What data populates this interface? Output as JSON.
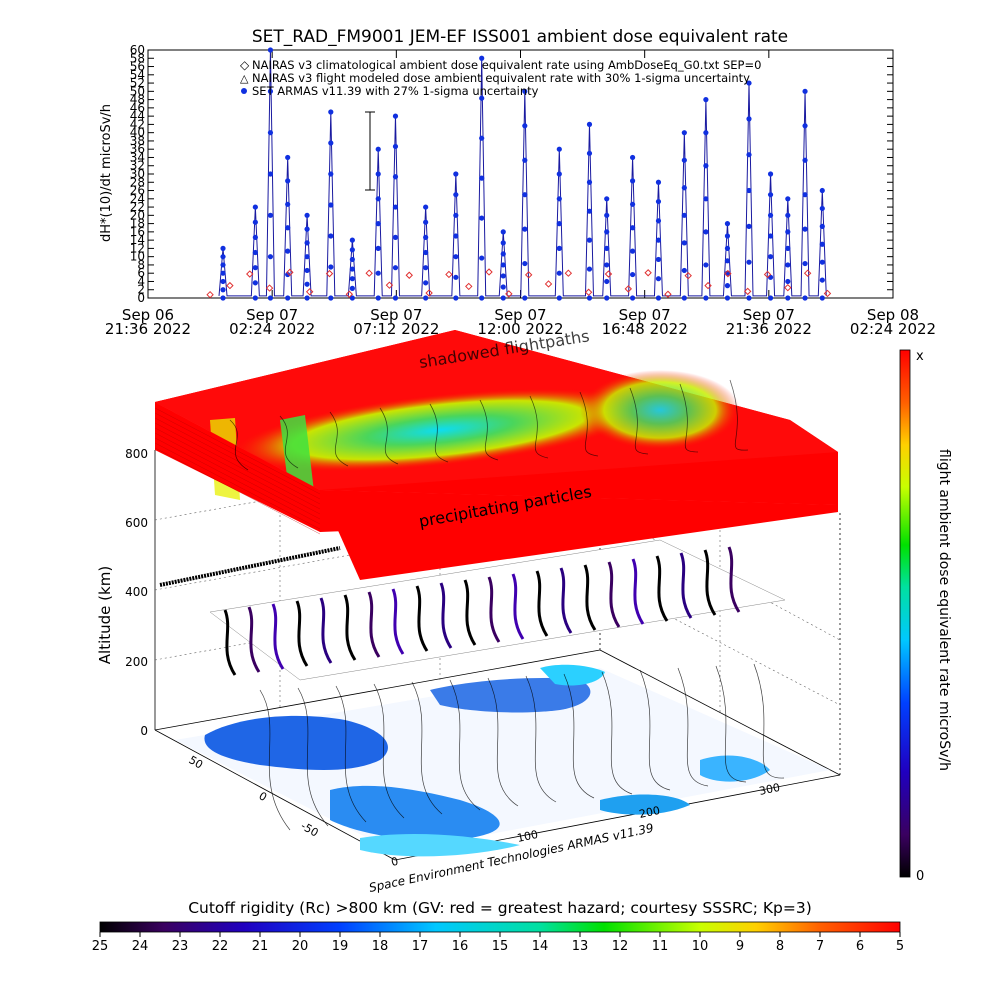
{
  "colors": {
    "nairas_clim": "#e03030",
    "armas": "#1030e0",
    "line": "#1a1aa0"
  },
  "top_chart": {
    "title": "SET_RAD_FM9001  JEM-EF ISS001 ambient dose equivalent rate",
    "ylabel": "dH*(10)/dt microSv/h",
    "legend": [
      "NAIRAS v3 climatological ambient dose equivalent rate using AmbDoseEq_G0.txt SEP=0",
      "NAIRAS v3 flight modeled dose ambient equivalent rate with 30% 1-sigma uncertainty",
      "SET ARMAS v11.39 with 27% 1-sigma uncertainty"
    ],
    "x_ticks": [
      {
        "line1": "Sep 06",
        "line2": "21:36 2022"
      },
      {
        "line1": "Sep 07",
        "line2": "02:24 2022"
      },
      {
        "line1": "Sep 07",
        "line2": "07:12 2022"
      },
      {
        "line1": "Sep 07",
        "line2": "12:00 2022"
      },
      {
        "line1": "Sep 07",
        "line2": "16:48 2022"
      },
      {
        "line1": "Sep 07",
        "line2": "21:36 2022"
      },
      {
        "line1": "Sep 08",
        "line2": "02:24 2022"
      }
    ]
  },
  "map3d": {
    "flightpath_label": "shadowed flightpaths",
    "precip_label": "precipitating particles",
    "zlabel": "Altitude (km)",
    "z_ticks": [
      "0",
      "200",
      "400",
      "600",
      "800"
    ],
    "lat_ticks": [
      "50",
      "0",
      "-50"
    ],
    "lon_ticks": [
      "0",
      "100",
      "200",
      "300"
    ],
    "credit": "Space Environment Technologies ARMAS v11.39"
  },
  "right_colorbar": {
    "label": "flight ambient dose equivalent rate microSv/h",
    "top_label": "x",
    "bottom_label": "0"
  },
  "bottom_colorbar": {
    "title": "Cutoff rigidity (Rc) >800 km (GV: red = greatest hazard; courtesy SSSRC; Kp=3)",
    "ticks": [
      "25",
      "24",
      "23",
      "22",
      "21",
      "20",
      "19",
      "18",
      "17",
      "16",
      "15",
      "14",
      "13",
      "12",
      "11",
      "10",
      "9",
      "8",
      "7",
      "6",
      "5"
    ]
  },
  "chart_data": {
    "type": "line",
    "title": "SET_RAD_FM9001  JEM-EF ISS001 ambient dose equivalent rate",
    "ylabel": "dH*(10)/dt microSv/h",
    "xlabel": "",
    "xlim": [
      "2022-09-06 21:36",
      "2022-09-08 02:24"
    ],
    "ylim": [
      0,
      60
    ],
    "y_ticks": [
      0,
      2,
      4,
      6,
      8,
      10,
      12,
      14,
      16,
      18,
      20,
      22,
      24,
      26,
      28,
      30,
      32,
      34,
      36,
      38,
      40,
      42,
      44,
      46,
      48,
      50,
      52,
      54,
      56,
      58,
      60
    ],
    "x_ticks": [
      "2022-09-06 21:36",
      "2022-09-07 02:24",
      "2022-09-07 07:12",
      "2022-09-07 12:00",
      "2022-09-07 16:48",
      "2022-09-07 21:36",
      "2022-09-08 02:24"
    ],
    "legend_position": "top",
    "series": [
      {
        "name": "NAIRAS v3 climatological ambient dose equivalent rate using AmbDoseEq_G0.txt SEP=0",
        "style": "diamond markers",
        "x": [
          "2022-09-07 00:00",
          "2022-09-07 00:46",
          "2022-09-07 01:32",
          "2022-09-07 02:18",
          "2022-09-07 03:05",
          "2022-09-07 03:51",
          "2022-09-07 04:37",
          "2022-09-07 05:23",
          "2022-09-07 06:09",
          "2022-09-07 06:56",
          "2022-09-07 07:42",
          "2022-09-07 08:28",
          "2022-09-07 09:14",
          "2022-09-07 10:00",
          "2022-09-07 10:47",
          "2022-09-07 11:33",
          "2022-09-07 12:19",
          "2022-09-07 13:05",
          "2022-09-07 13:51",
          "2022-09-07 14:38",
          "2022-09-07 15:24",
          "2022-09-07 16:10",
          "2022-09-07 16:56",
          "2022-09-07 17:42",
          "2022-09-07 18:29",
          "2022-09-07 19:15",
          "2022-09-07 20:01",
          "2022-09-07 20:47",
          "2022-09-07 21:33",
          "2022-09-07 22:20",
          "2022-09-07 23:06",
          "2022-09-07 23:52"
        ],
        "y": [
          0.8,
          3.0,
          5.8,
          2.4,
          6.2,
          1.5,
          5.9,
          0.9,
          6.0,
          3.1,
          5.5,
          1.2,
          5.7,
          2.8,
          6.3,
          1.0,
          5.6,
          3.4,
          6.0,
          1.4,
          5.8,
          2.2,
          6.1,
          0.9,
          5.4,
          3.0,
          5.9,
          1.6,
          5.7,
          2.5,
          6.0,
          1.1
        ]
      },
      {
        "name": "SET ARMAS v11.39 with 27% 1-sigma uncertainty",
        "style": "filled dots connected by line",
        "x": [
          "2022-09-07 00:30",
          "2022-09-07 01:45",
          "2022-09-07 02:20",
          "2022-09-07 03:00",
          "2022-09-07 03:45",
          "2022-09-07 04:40",
          "2022-09-07 05:30",
          "2022-09-07 06:30",
          "2022-09-07 07:10",
          "2022-09-07 08:20",
          "2022-09-07 09:30",
          "2022-09-07 10:30",
          "2022-09-07 11:20",
          "2022-09-07 12:10",
          "2022-09-07 13:30",
          "2022-09-07 14:40",
          "2022-09-07 15:20",
          "2022-09-07 16:20",
          "2022-09-07 17:20",
          "2022-09-07 18:20",
          "2022-09-07 19:10",
          "2022-09-07 20:00",
          "2022-09-07 20:50",
          "2022-09-07 21:40",
          "2022-09-07 22:20",
          "2022-09-07 23:00",
          "2022-09-07 23:40"
        ],
        "y": [
          12,
          22,
          60,
          34,
          20,
          45,
          14,
          36,
          44,
          22,
          30,
          58,
          16,
          50,
          36,
          42,
          24,
          34,
          28,
          40,
          48,
          18,
          52,
          30,
          24,
          50,
          26
        ]
      }
    ]
  }
}
